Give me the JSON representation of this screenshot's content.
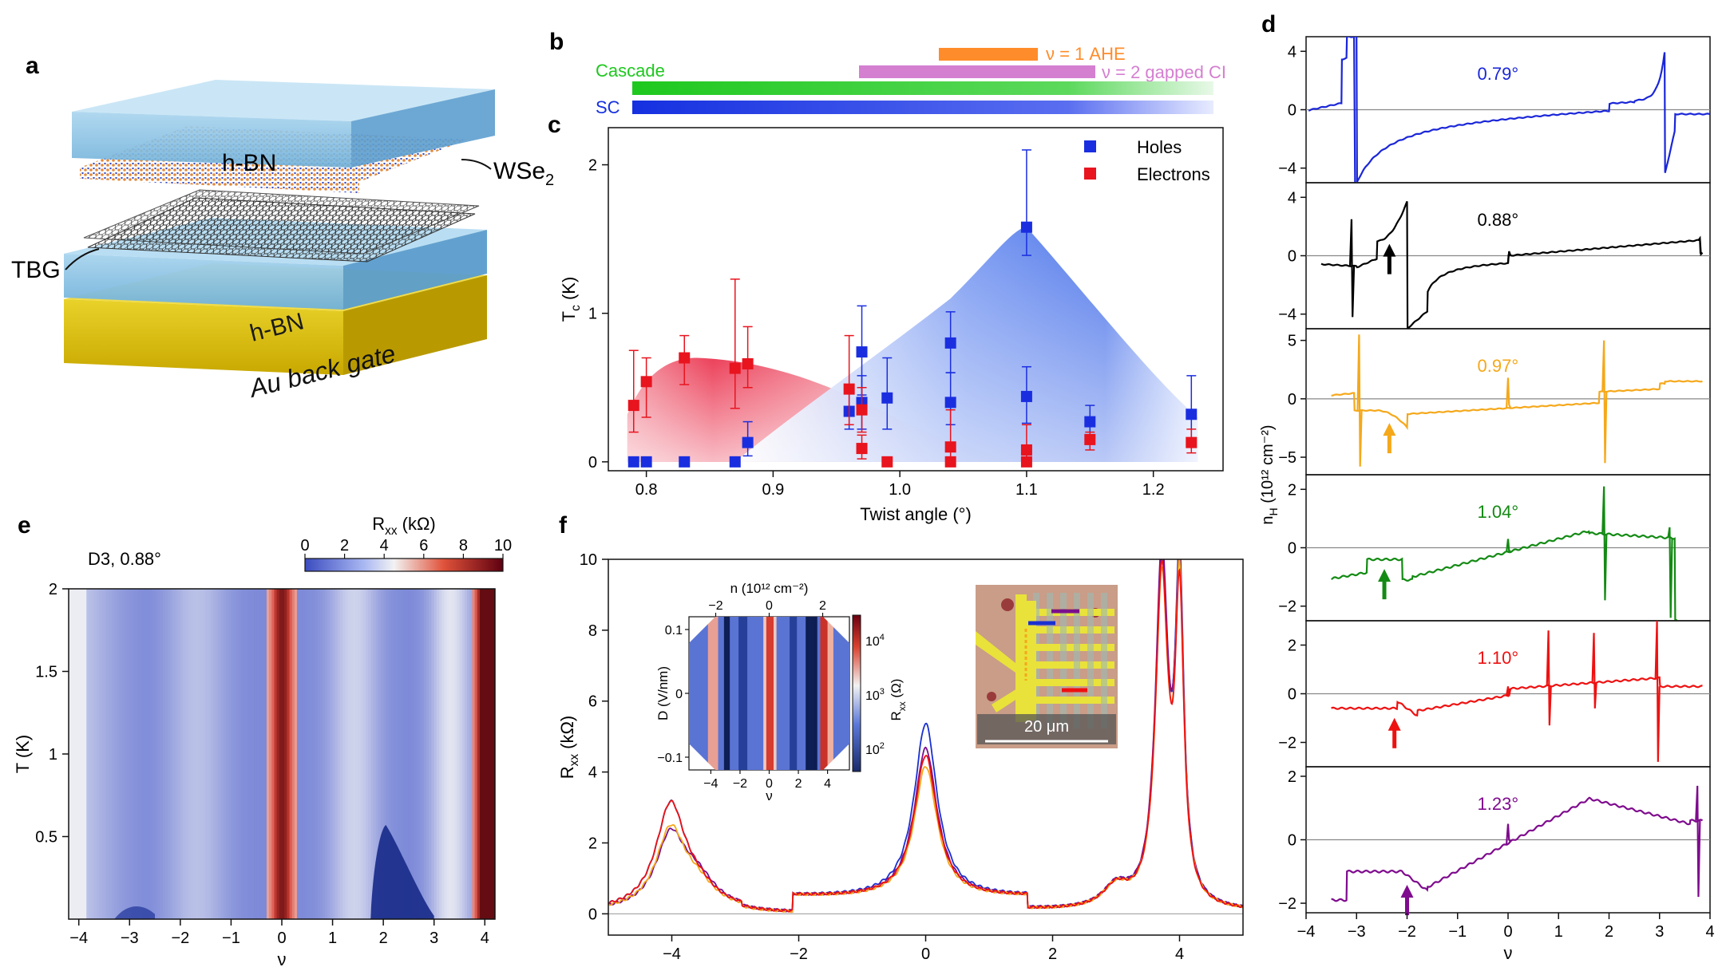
{
  "panels": {
    "a": {
      "letter": "a",
      "labels": {
        "hbn_top": "h-BN",
        "wse2": "WSe",
        "wse2_sub": "2",
        "tbg": "TBG",
        "hbn_bottom": "h-BN",
        "gate": "Au back gate"
      },
      "colors": {
        "hbn": "#8fc6e6",
        "gold": "#e7c91c",
        "lattice": "#2a2a2a",
        "se": "#e08a3c",
        "w": "#3048c8"
      }
    },
    "b": {
      "letter": "b",
      "bars": [
        {
          "label": "ν = 1 AHE",
          "color": "#ff8c2a",
          "range": [
            1.03,
            1.1
          ]
        },
        {
          "label": "ν = 2 gapped CI",
          "color": "#d47fd0",
          "range": [
            0.96,
            1.15
          ]
        },
        {
          "label": "Cascade",
          "color": "#1ec81e",
          "range": [
            0.79,
            1.23
          ]
        },
        {
          "label": "SC",
          "color": "#1530e0",
          "range": [
            0.79,
            1.23
          ]
        }
      ]
    },
    "c": {
      "letter": "c",
      "chart_data": {
        "type": "scatter",
        "xlabel": "Twist angle (°)",
        "ylabel": "T",
        "ylabel_sub": "c",
        "ylabel_unit": " (K)",
        "xlim": [
          0.77,
          1.255
        ],
        "ylim": [
          -0.06,
          2.25
        ],
        "xticks": [
          0.8,
          0.9,
          1.0,
          1.1,
          1.2
        ],
        "xtick_labels": [
          "0.8",
          "0.9",
          "1.0",
          "1.1",
          "1.2"
        ],
        "yticks": [
          0,
          1,
          2
        ],
        "ytick_labels": [
          "0",
          "1",
          "2"
        ],
        "series": [
          {
            "name": "Holes",
            "color": "#1a2ee0",
            "points": [
              {
                "x": 0.79,
                "y": 0,
                "lo": 0,
                "hi": 0
              },
              {
                "x": 0.8,
                "y": 0,
                "lo": 0,
                "hi": 0
              },
              {
                "x": 0.83,
                "y": 0,
                "lo": 0,
                "hi": 0
              },
              {
                "x": 0.87,
                "y": 0,
                "lo": 0,
                "hi": 0
              },
              {
                "x": 0.88,
                "y": 0.13,
                "lo": 0.04,
                "hi": 0.27
              },
              {
                "x": 0.96,
                "y": 0.34,
                "lo": 0.22,
                "hi": 0.5
              },
              {
                "x": 0.97,
                "y": 0.74,
                "lo": 0.45,
                "hi": 1.05
              },
              {
                "x": 0.97,
                "y": 0.4,
                "lo": 0.22,
                "hi": 0.58
              },
              {
                "x": 0.99,
                "y": 0.43,
                "lo": 0.22,
                "hi": 0.7
              },
              {
                "x": 1.04,
                "y": 0.8,
                "lo": 0.6,
                "hi": 1.01
              },
              {
                "x": 1.04,
                "y": 0.4,
                "lo": 0.25,
                "hi": 0.6
              },
              {
                "x": 1.1,
                "y": 1.58,
                "lo": 1.39,
                "hi": 2.1
              },
              {
                "x": 1.1,
                "y": 0.44,
                "lo": 0.26,
                "hi": 0.64
              },
              {
                "x": 1.15,
                "y": 0.27,
                "lo": 0.18,
                "hi": 0.38
              },
              {
                "x": 1.23,
                "y": 0.32,
                "lo": 0.1,
                "hi": 0.58
              }
            ]
          },
          {
            "name": "Electrons",
            "color": "#e8141e",
            "points": [
              {
                "x": 0.79,
                "y": 0.38,
                "lo": 0.2,
                "hi": 0.75
              },
              {
                "x": 0.8,
                "y": 0.54,
                "lo": 0.3,
                "hi": 0.7
              },
              {
                "x": 0.83,
                "y": 0.7,
                "lo": 0.52,
                "hi": 0.85
              },
              {
                "x": 0.87,
                "y": 0.63,
                "lo": 0.36,
                "hi": 1.23
              },
              {
                "x": 0.88,
                "y": 0.66,
                "lo": 0.5,
                "hi": 0.91
              },
              {
                "x": 0.96,
                "y": 0.49,
                "lo": 0.25,
                "hi": 0.85
              },
              {
                "x": 0.97,
                "y": 0.35,
                "lo": 0.2,
                "hi": 0.5
              },
              {
                "x": 0.97,
                "y": 0.09,
                "lo": 0.02,
                "hi": 0.18
              },
              {
                "x": 0.99,
                "y": 0,
                "lo": 0,
                "hi": 0
              },
              {
                "x": 1.04,
                "y": 0.1,
                "lo": 0.02,
                "hi": 0.35
              },
              {
                "x": 1.04,
                "y": 0,
                "lo": 0,
                "hi": 0
              },
              {
                "x": 1.1,
                "y": 0.08,
                "lo": 0.02,
                "hi": 0.25
              },
              {
                "x": 1.1,
                "y": 0,
                "lo": 0,
                "hi": 0
              },
              {
                "x": 1.15,
                "y": 0.15,
                "lo": 0.08,
                "hi": 0.2
              },
              {
                "x": 1.23,
                "y": 0.13,
                "lo": 0.06,
                "hi": 0.22
              }
            ]
          }
        ],
        "legend": "top-right",
        "legend_entries": [
          "Holes",
          "Electrons"
        ]
      }
    },
    "d": {
      "letter": "d",
      "chart_data": {
        "type": "line",
        "xlabel": "ν",
        "ylabel": "n",
        "ylabel_sub": "H",
        "ylabel_unit": " (10¹² cm⁻²)",
        "xlim": [
          -4,
          4
        ],
        "xticks": [
          -4,
          -3,
          -2,
          -1,
          0,
          1,
          2,
          3,
          4
        ],
        "xtick_labels": [
          "−4",
          "−3",
          "−2",
          "−1",
          "0",
          "1",
          "2",
          "3",
          "4"
        ],
        "subplots": [
          {
            "label": "0.79°",
            "color": "#1a26d8",
            "ylim": [
              -5,
              5
            ],
            "yticks": [
              -4,
              0,
              4
            ],
            "ytick_labels": [
              "−4",
              "0",
              "4"
            ],
            "arrow": null
          },
          {
            "label": "0.88°",
            "color": "#000000",
            "ylim": [
              -5,
              5
            ],
            "yticks": [
              -4,
              0,
              4
            ],
            "ytick_labels": [
              "−4",
              "0",
              "4"
            ],
            "arrow": -2.35
          },
          {
            "label": "0.97°",
            "color": "#f5a81a",
            "ylim": [
              -6.5,
              6
            ],
            "yticks": [
              -5,
              0,
              5
            ],
            "ytick_labels": [
              "−5",
              "0",
              "5"
            ],
            "arrow": -2.35
          },
          {
            "label": "1.04°",
            "color": "#138a13",
            "ylim": [
              -2.5,
              2.5
            ],
            "yticks": [
              -2,
              0,
              2
            ],
            "ytick_labels": [
              "−2",
              "0",
              "2"
            ],
            "arrow": -2.45
          },
          {
            "label": "1.10°",
            "color": "#ee1111",
            "ylim": [
              -3,
              3
            ],
            "yticks": [
              -2,
              0,
              2
            ],
            "ytick_labels": [
              "−2",
              "0",
              "2"
            ],
            "arrow": -2.25
          },
          {
            "label": "1.23°",
            "color": "#7f0b8e",
            "ylim": [
              -2.3,
              2.3
            ],
            "yticks": [
              -2,
              0,
              2
            ],
            "ytick_labels": [
              "−2",
              "0",
              "2"
            ],
            "arrow": -2.0
          }
        ]
      }
    },
    "e": {
      "letter": "e",
      "chart_data": {
        "type": "heatmap",
        "title": "D3, 0.88°",
        "xlabel": "ν",
        "ylabel": "T (K)",
        "xlim": [
          -4.2,
          4.2
        ],
        "ylim": [
          0,
          2
        ],
        "xticks": [
          -4,
          -3,
          -2,
          -1,
          0,
          1,
          2,
          3,
          4
        ],
        "xtick_labels": [
          "−4",
          "−3",
          "−2",
          "−1",
          "0",
          "1",
          "2",
          "3",
          "4"
        ],
        "yticks": [
          0.5,
          1,
          1.5,
          2
        ],
        "ytick_labels": [
          "0.5",
          "1",
          "1.5",
          "2"
        ],
        "colorbar": {
          "label": "R",
          "label_sub": "xx",
          "label_unit": " (kΩ)",
          "range": [
            0,
            10
          ],
          "ticks": [
            0,
            2,
            4,
            6,
            8,
            10
          ],
          "tick_labels": [
            "0",
            "2",
            "4",
            "6",
            "8",
            "10"
          ],
          "colors": [
            "#3b4cc0",
            "#f2f2f2",
            "#d23a2a",
            "#6b0010"
          ]
        }
      }
    },
    "f": {
      "letter": "f",
      "chart_data": {
        "type": "line",
        "xlabel": "ν",
        "ylabel": "R",
        "ylabel_sub": "xx",
        "ylabel_unit": " (kΩ)",
        "xlim": [
          -5,
          5
        ],
        "ylim": [
          -0.6,
          10
        ],
        "xticks": [
          -4,
          -2,
          0,
          2,
          4
        ],
        "xtick_labels": [
          "−4",
          "−2",
          "0",
          "2",
          "4"
        ],
        "yticks": [
          0,
          2,
          4,
          6,
          8,
          10
        ],
        "ytick_labels": [
          "0",
          "2",
          "4",
          "6",
          "8",
          "10"
        ],
        "series": [
          {
            "name": "blue",
            "color": "#1a30d0"
          },
          {
            "name": "purple",
            "color": "#7a0f8e"
          },
          {
            "name": "orange",
            "color": "#f5a81a"
          },
          {
            "name": "red",
            "color": "#ee1111"
          }
        ],
        "inset_map": {
          "top_label": "n (10¹² cm⁻²)",
          "top_ticks": [
            -2,
            0,
            2
          ],
          "top_tick_labels": [
            "−2",
            "0",
            "2"
          ],
          "xlabel": "ν",
          "xticks": [
            -4,
            -2,
            0,
            2,
            4
          ],
          "xtick_labels": [
            "−4",
            "−2",
            "0",
            "2",
            "4"
          ],
          "ylabel": "D (V/nm)",
          "yticks": [
            -0.1,
            0,
            0.1
          ],
          "ytick_labels": [
            "−0.1",
            "0",
            "0.1"
          ],
          "colorbar_label": "R",
          "colorbar_sub": "xx",
          "colorbar_unit": " (Ω)",
          "colorbar_ticks": [
            "10",
            "10",
            "10"
          ],
          "colorbar_exps": [
            "4",
            "3",
            "2"
          ]
        },
        "inset_photo": {
          "scale_label": "20 μm"
        }
      }
    }
  }
}
